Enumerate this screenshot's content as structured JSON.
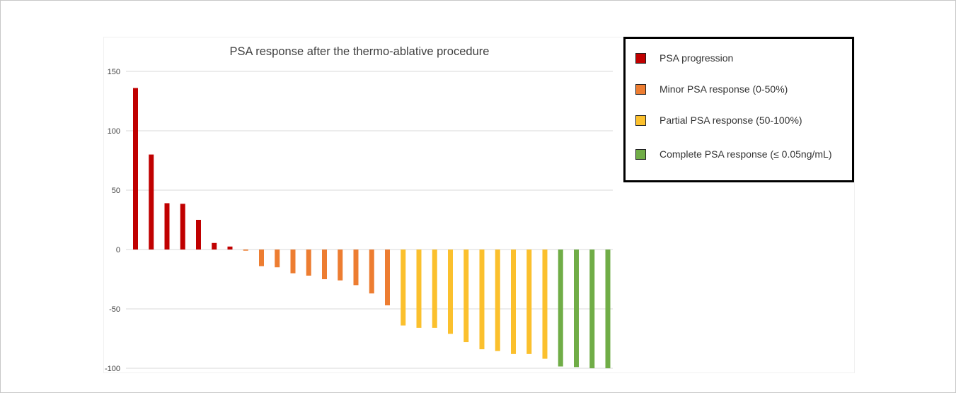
{
  "chart_data": {
    "type": "bar",
    "title": "PSA response after the thermo-ablative procedure",
    "xlabel": "",
    "ylabel": "",
    "ylim": [
      -100,
      150
    ],
    "yticks": [
      "150",
      "100",
      "50",
      "0",
      "-50",
      "-100"
    ],
    "grid": true,
    "legend_position": "top-right",
    "series": [
      {
        "name": "PSA progression",
        "color": "#c00000",
        "values": [
          136,
          80,
          39,
          38.5,
          25,
          5.5,
          2.5
        ]
      },
      {
        "name": "Minor PSA response (0-50%)",
        "color": "#ed7d31",
        "values": [
          -1,
          -14,
          -15,
          -20,
          -22,
          -25,
          -26,
          -30,
          -37,
          -47
        ]
      },
      {
        "name": "Partial PSA response (50-100%)",
        "color": "#fbc02d",
        "values": [
          -64,
          -66,
          -66,
          -71,
          -78,
          -84,
          -85.5,
          -88,
          -88,
          -92
        ]
      },
      {
        "name": "Complete PSA response (≤ 0.05ng/mL)",
        "color": "#70ad47",
        "values": [
          -98.5,
          -99,
          -100,
          -100
        ]
      }
    ]
  },
  "legend": {
    "items": [
      {
        "label": "PSA progression",
        "color": "#c00000"
      },
      {
        "label": "Minor PSA response (0-50%)",
        "color": "#ed7d31"
      },
      {
        "label": "Partial PSA response (50-100%)",
        "color": "#fbc02d"
      },
      {
        "label": "Complete PSA response (≤ 0.05ng/mL)",
        "color": "#70ad47"
      }
    ]
  }
}
